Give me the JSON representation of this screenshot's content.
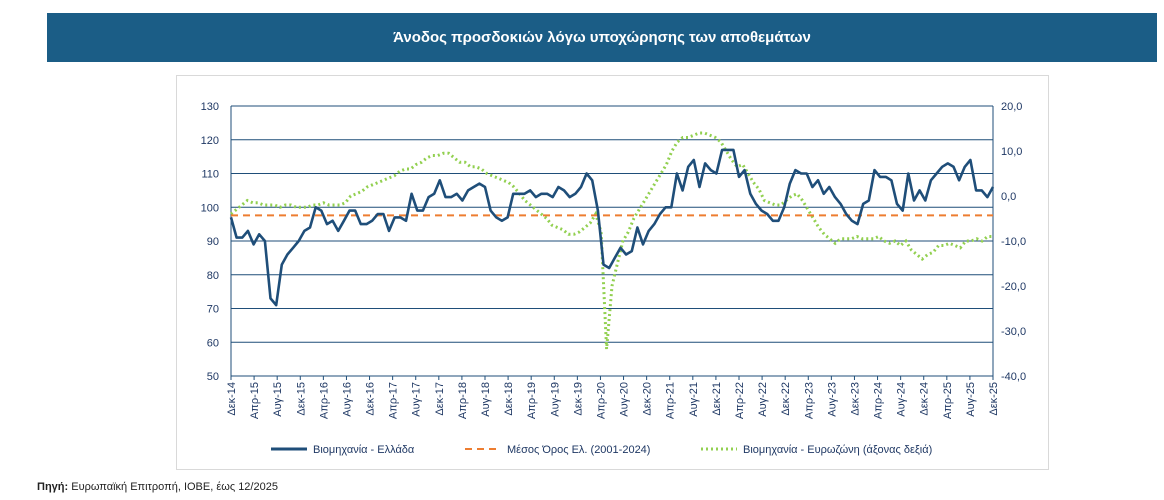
{
  "header": {
    "title": "Άνοδος προσδοκιών λόγω υποχώρησης των αποθεμάτων"
  },
  "footer": {
    "source_label": "Πηγή:",
    "source_text": "Ευρωπαϊκή Επιτροπή, ΙΟΒΕ, έως 12/2025"
  },
  "colors": {
    "banner": "#1b5d86",
    "greece": "#1f4e79",
    "mean": "#ed7d31",
    "eurozone": "#92d050",
    "grid": "#1f4e79"
  },
  "chart_data": {
    "type": "line",
    "title": "Άνοδος προσδοκιών λόγω υποχώρησης των αποθεμάτων",
    "y_left": {
      "min": 50,
      "max": 130,
      "ticks": [
        "130",
        "120",
        "110",
        "100",
        "90",
        "80",
        "70",
        "60",
        "50"
      ]
    },
    "y_right": {
      "min": -40,
      "max": 20,
      "ticks": [
        "20,0",
        "10,0",
        "0,0",
        "-10,0",
        "-20,0",
        "-30,0",
        "-40,0"
      ]
    },
    "x_ticks": [
      "Δεκ-14",
      "Απρ-15",
      "Αυγ-15",
      "Δεκ-15",
      "Απρ-16",
      "Αυγ-16",
      "Δεκ-16",
      "Απρ-17",
      "Αυγ-17",
      "Δεκ-17",
      "Απρ-18",
      "Αυγ-18",
      "Δεκ-18",
      "Απρ-19",
      "Αυγ-19",
      "Δεκ-19",
      "Απρ-20",
      "Αυγ-20",
      "Δεκ-20",
      "Απρ-21",
      "Αυγ-21",
      "Δεκ-21",
      "Απρ-22",
      "Αυγ-22",
      "Δεκ-22",
      "Απρ-23",
      "Αυγ-23",
      "Δεκ-23",
      "Απρ-24",
      "Αυγ-24",
      "Δεκ-24",
      "Απρ-25",
      "Αυγ-25",
      "Δεκ-25"
    ],
    "series": [
      {
        "name": "Βιομηχανία  - Ελλάδα",
        "axis": "left",
        "style": "solid",
        "values": [
          97,
          91,
          91,
          93,
          89,
          92,
          90,
          73,
          71,
          83,
          86,
          88,
          90,
          93,
          94,
          100,
          99,
          95,
          96,
          93,
          96,
          99,
          99,
          95,
          95,
          96,
          98,
          98,
          93,
          97,
          97,
          96,
          104,
          99,
          99,
          103,
          104,
          108,
          103,
          103,
          104,
          102,
          105,
          106,
          107,
          106,
          99,
          97,
          96,
          97,
          104,
          104,
          104,
          105,
          103,
          104,
          104,
          103,
          106,
          105,
          103,
          104,
          106,
          110,
          108,
          99,
          83,
          82,
          85,
          88,
          86,
          87,
          94,
          89,
          93,
          95,
          98,
          100,
          100,
          110,
          105,
          112,
          114,
          106,
          113,
          111,
          110,
          117,
          117,
          117,
          109,
          111,
          104,
          101,
          99,
          98,
          96,
          96,
          100,
          107,
          111,
          110,
          110,
          106,
          108,
          104,
          106,
          103,
          101,
          98,
          96,
          95,
          101,
          102,
          111,
          109,
          109,
          108,
          101,
          99,
          110,
          102,
          105,
          102,
          108,
          110,
          112,
          113,
          112,
          108,
          112,
          114,
          105,
          105,
          103,
          106
        ]
      },
      {
        "name": "Μέσος Όρος Ελ. (2001-2024)",
        "axis": "left",
        "style": "dashed",
        "values": [
          97.6
        ]
      },
      {
        "name": "Βιομηχανία - Ευρωζώνη (άξονας δεξιά)",
        "axis": "right",
        "style": "dotted",
        "values": [
          -4,
          -3,
          -2,
          -1,
          -1.5,
          -1.5,
          -2,
          -2,
          -2,
          -2.5,
          -2,
          -2,
          -2.5,
          -2.5,
          -2.5,
          -2,
          -2,
          -1.5,
          -2,
          -2,
          -2,
          -1.5,
          0,
          0.5,
          1,
          2,
          2.5,
          3,
          3.5,
          4,
          4.5,
          5.5,
          6,
          6,
          7,
          7.5,
          8.5,
          9,
          9,
          9.5,
          9.5,
          8.5,
          7.5,
          7.5,
          6.5,
          6.5,
          6,
          5,
          4.5,
          4,
          3.5,
          3,
          2,
          0.5,
          -1,
          -2,
          -3,
          -4,
          -5,
          -6.5,
          -7,
          -7.5,
          -8.5,
          -8.5,
          -8,
          -7,
          -6,
          -4,
          -8,
          -34,
          -20,
          -15,
          -10,
          -8,
          -5,
          -3,
          -1,
          1,
          3,
          5,
          7,
          10,
          12,
          13,
          13,
          13.5,
          14,
          14,
          13.5,
          13,
          12,
          10,
          8,
          6.5,
          7,
          5,
          3,
          1.5,
          -1,
          -1.5,
          -2,
          -2,
          -1,
          0,
          0.5,
          -1,
          -3,
          -5,
          -7,
          -8.5,
          -9.5,
          -10.5,
          -9.5,
          -9.5,
          -9.5,
          -9,
          -9.5,
          -9.5,
          -9.5,
          -9,
          -10,
          -10.5,
          -10,
          -11,
          -10,
          -12,
          -13,
          -14,
          -13,
          -12.5,
          -11,
          -11,
          -10.5,
          -11,
          -11.5,
          -10,
          -10,
          -9.5,
          -10,
          -9,
          -9
        ]
      }
    ]
  }
}
